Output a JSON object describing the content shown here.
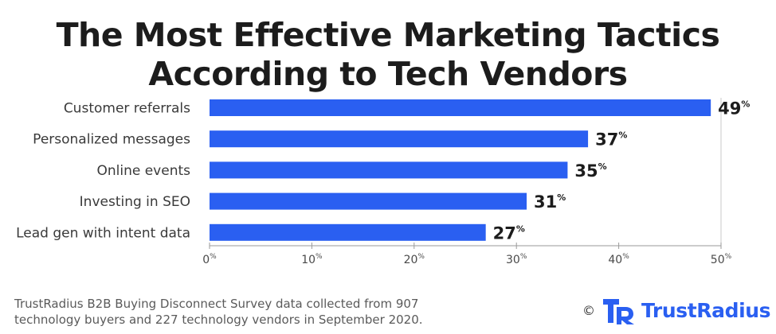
{
  "chart_data": {
    "type": "bar",
    "orientation": "horizontal",
    "title_lines": [
      "The Most Effective Marketing Tactics",
      "According to Tech Vendors"
    ],
    "categories": [
      "Customer referrals",
      "Personalized messages",
      "Online events",
      "Investing in SEO",
      "Lead gen with intent data"
    ],
    "values": [
      49,
      37,
      35,
      31,
      27
    ],
    "value_suffix": "%",
    "xlim": [
      0,
      50
    ],
    "x_ticks": [
      0,
      10,
      20,
      30,
      40,
      50
    ],
    "xlabel": "",
    "ylabel": "",
    "bar_color": "#2a5ff1",
    "grid": false
  },
  "footer": {
    "source_line1": "TrustRadius B2B Buying Disconnect Survey data collected from 907",
    "source_line2": "technology buyers and 227 technology vendors in September 2020.",
    "copyright": "©",
    "brand_name": "TrustRadius",
    "brand_color": "#2a5ff1",
    "logo_icon": "trustradius-logo-icon"
  }
}
